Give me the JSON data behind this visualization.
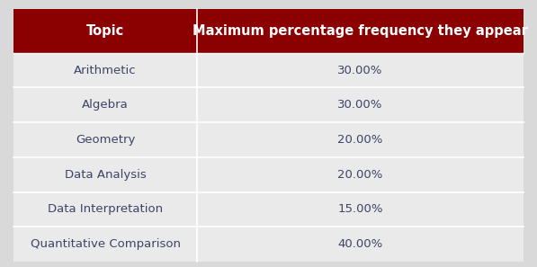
{
  "header": [
    "Topic",
    "Maximum percentage frequency they appear"
  ],
  "rows": [
    [
      "Arithmetic",
      "30.00%"
    ],
    [
      "Algebra",
      "30.00%"
    ],
    [
      "Geometry",
      "20.00%"
    ],
    [
      "Data Analysis",
      "20.00%"
    ],
    [
      "Data Interpretation",
      "15.00%"
    ],
    [
      "Quantitative Comparison",
      "40.00%"
    ]
  ],
  "header_bg_color": "#8b0000",
  "header_text_color": "#ffffff",
  "row_bg_color": "#eaeaea",
  "divider_color": "#ffffff",
  "cell_text_color": "#3d4466",
  "fig_bg_color": "#d9d9d9",
  "col_split": 0.36,
  "header_fontsize": 10.5,
  "cell_fontsize": 9.5,
  "header_font_weight": "bold"
}
